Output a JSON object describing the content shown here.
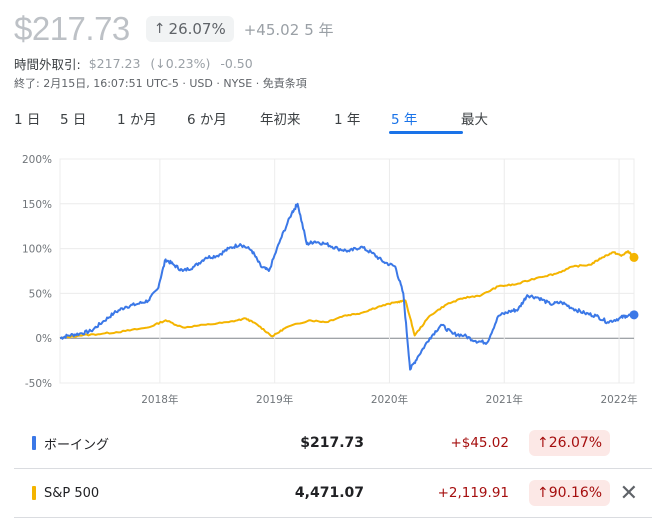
{
  "quote": {
    "price": "$217.73",
    "pct_arrow": "↑",
    "pct": "26.07%",
    "change": "+45.02",
    "period": "5 年"
  },
  "after_hours": {
    "label": "時間外取引:",
    "price": "$217.23",
    "pct": "(↓0.23%)",
    "change": "-0.50"
  },
  "meta": "終了: 2月15日, 16:07:51 UTC-5 · USD · NYSE · 免責条項",
  "tabs": [
    {
      "label": "1 日",
      "active": false
    },
    {
      "label": "5 日",
      "active": false
    },
    {
      "label": "1 か月",
      "active": false
    },
    {
      "label": "6 か月",
      "active": false
    },
    {
      "label": "年初来",
      "active": false
    },
    {
      "label": "1 年",
      "active": false
    },
    {
      "label": "5 年",
      "active": true
    },
    {
      "label": "最大",
      "active": false
    }
  ],
  "chart_data": {
    "type": "line",
    "y_ticks": [
      "200%",
      "150%",
      "100%",
      "50%",
      "0%",
      "-50%"
    ],
    "ylim": [
      -50,
      200
    ],
    "x_ticks": [
      {
        "label": "2018年",
        "x": 2018.0
      },
      {
        "label": "2019年",
        "x": 2019.0
      },
      {
        "label": "2020年",
        "x": 2020.0
      },
      {
        "label": "2021年",
        "x": 2021.0
      },
      {
        "label": "2022年",
        "x": 2022.0
      }
    ],
    "xlim": [
      2017.13,
      2022.13
    ],
    "series": [
      {
        "name": "ボーイング",
        "color": "#3b78e7",
        "points": [
          [
            2017.13,
            0
          ],
          [
            2017.2,
            3
          ],
          [
            2017.3,
            5
          ],
          [
            2017.4,
            8
          ],
          [
            2017.5,
            18
          ],
          [
            2017.6,
            28
          ],
          [
            2017.7,
            35
          ],
          [
            2017.8,
            38
          ],
          [
            2017.9,
            42
          ],
          [
            2017.98,
            55
          ],
          [
            2018.05,
            88
          ],
          [
            2018.12,
            82
          ],
          [
            2018.2,
            75
          ],
          [
            2018.3,
            80
          ],
          [
            2018.4,
            90
          ],
          [
            2018.5,
            92
          ],
          [
            2018.6,
            100
          ],
          [
            2018.7,
            105
          ],
          [
            2018.8,
            98
          ],
          [
            2018.88,
            80
          ],
          [
            2018.95,
            75
          ],
          [
            2019.05,
            110
          ],
          [
            2019.15,
            140
          ],
          [
            2019.2,
            150
          ],
          [
            2019.28,
            105
          ],
          [
            2019.35,
            108
          ],
          [
            2019.45,
            105
          ],
          [
            2019.55,
            100
          ],
          [
            2019.65,
            97
          ],
          [
            2019.75,
            102
          ],
          [
            2019.85,
            95
          ],
          [
            2019.95,
            85
          ],
          [
            2020.05,
            80
          ],
          [
            2020.12,
            50
          ],
          [
            2020.18,
            -35
          ],
          [
            2020.25,
            -20
          ],
          [
            2020.35,
            0
          ],
          [
            2020.45,
            15
          ],
          [
            2020.55,
            5
          ],
          [
            2020.65,
            3
          ],
          [
            2020.75,
            -3
          ],
          [
            2020.85,
            -5
          ],
          [
            2020.95,
            25
          ],
          [
            2021.05,
            30
          ],
          [
            2021.12,
            32
          ],
          [
            2021.2,
            48
          ],
          [
            2021.3,
            45
          ],
          [
            2021.4,
            38
          ],
          [
            2021.5,
            40
          ],
          [
            2021.6,
            33
          ],
          [
            2021.7,
            28
          ],
          [
            2021.8,
            25
          ],
          [
            2021.9,
            18
          ],
          [
            2022.0,
            22
          ],
          [
            2022.06,
            25
          ],
          [
            2022.13,
            26.07
          ]
        ]
      },
      {
        "name": "S&P 500",
        "color": "#f4b400",
        "points": [
          [
            2017.13,
            0
          ],
          [
            2017.3,
            3
          ],
          [
            2017.5,
            5
          ],
          [
            2017.7,
            8
          ],
          [
            2017.9,
            12
          ],
          [
            2018.05,
            20
          ],
          [
            2018.2,
            12
          ],
          [
            2018.4,
            15
          ],
          [
            2018.6,
            18
          ],
          [
            2018.75,
            22
          ],
          [
            2018.85,
            15
          ],
          [
            2018.98,
            2
          ],
          [
            2019.1,
            12
          ],
          [
            2019.3,
            20
          ],
          [
            2019.45,
            18
          ],
          [
            2019.6,
            25
          ],
          [
            2019.75,
            28
          ],
          [
            2019.9,
            35
          ],
          [
            2020.05,
            40
          ],
          [
            2020.14,
            42
          ],
          [
            2020.22,
            3
          ],
          [
            2020.35,
            25
          ],
          [
            2020.5,
            38
          ],
          [
            2020.65,
            45
          ],
          [
            2020.8,
            48
          ],
          [
            2020.95,
            58
          ],
          [
            2021.1,
            60
          ],
          [
            2021.3,
            68
          ],
          [
            2021.45,
            72
          ],
          [
            2021.6,
            80
          ],
          [
            2021.75,
            82
          ],
          [
            2021.85,
            90
          ],
          [
            2021.95,
            96
          ],
          [
            2022.02,
            92
          ],
          [
            2022.08,
            97
          ],
          [
            2022.13,
            90.16
          ]
        ]
      }
    ]
  },
  "comparison": [
    {
      "name": "ボーイング",
      "color": "#3b78e7",
      "value": "$217.73",
      "change": "+$45.02",
      "pct": "↑26.07%",
      "removable": false
    },
    {
      "name": "S&P 500",
      "color": "#f4b400",
      "value": "4,471.07",
      "change": "+2,119.91",
      "pct": "↑90.16%",
      "removable": true,
      "remove_label": "✕"
    }
  ]
}
